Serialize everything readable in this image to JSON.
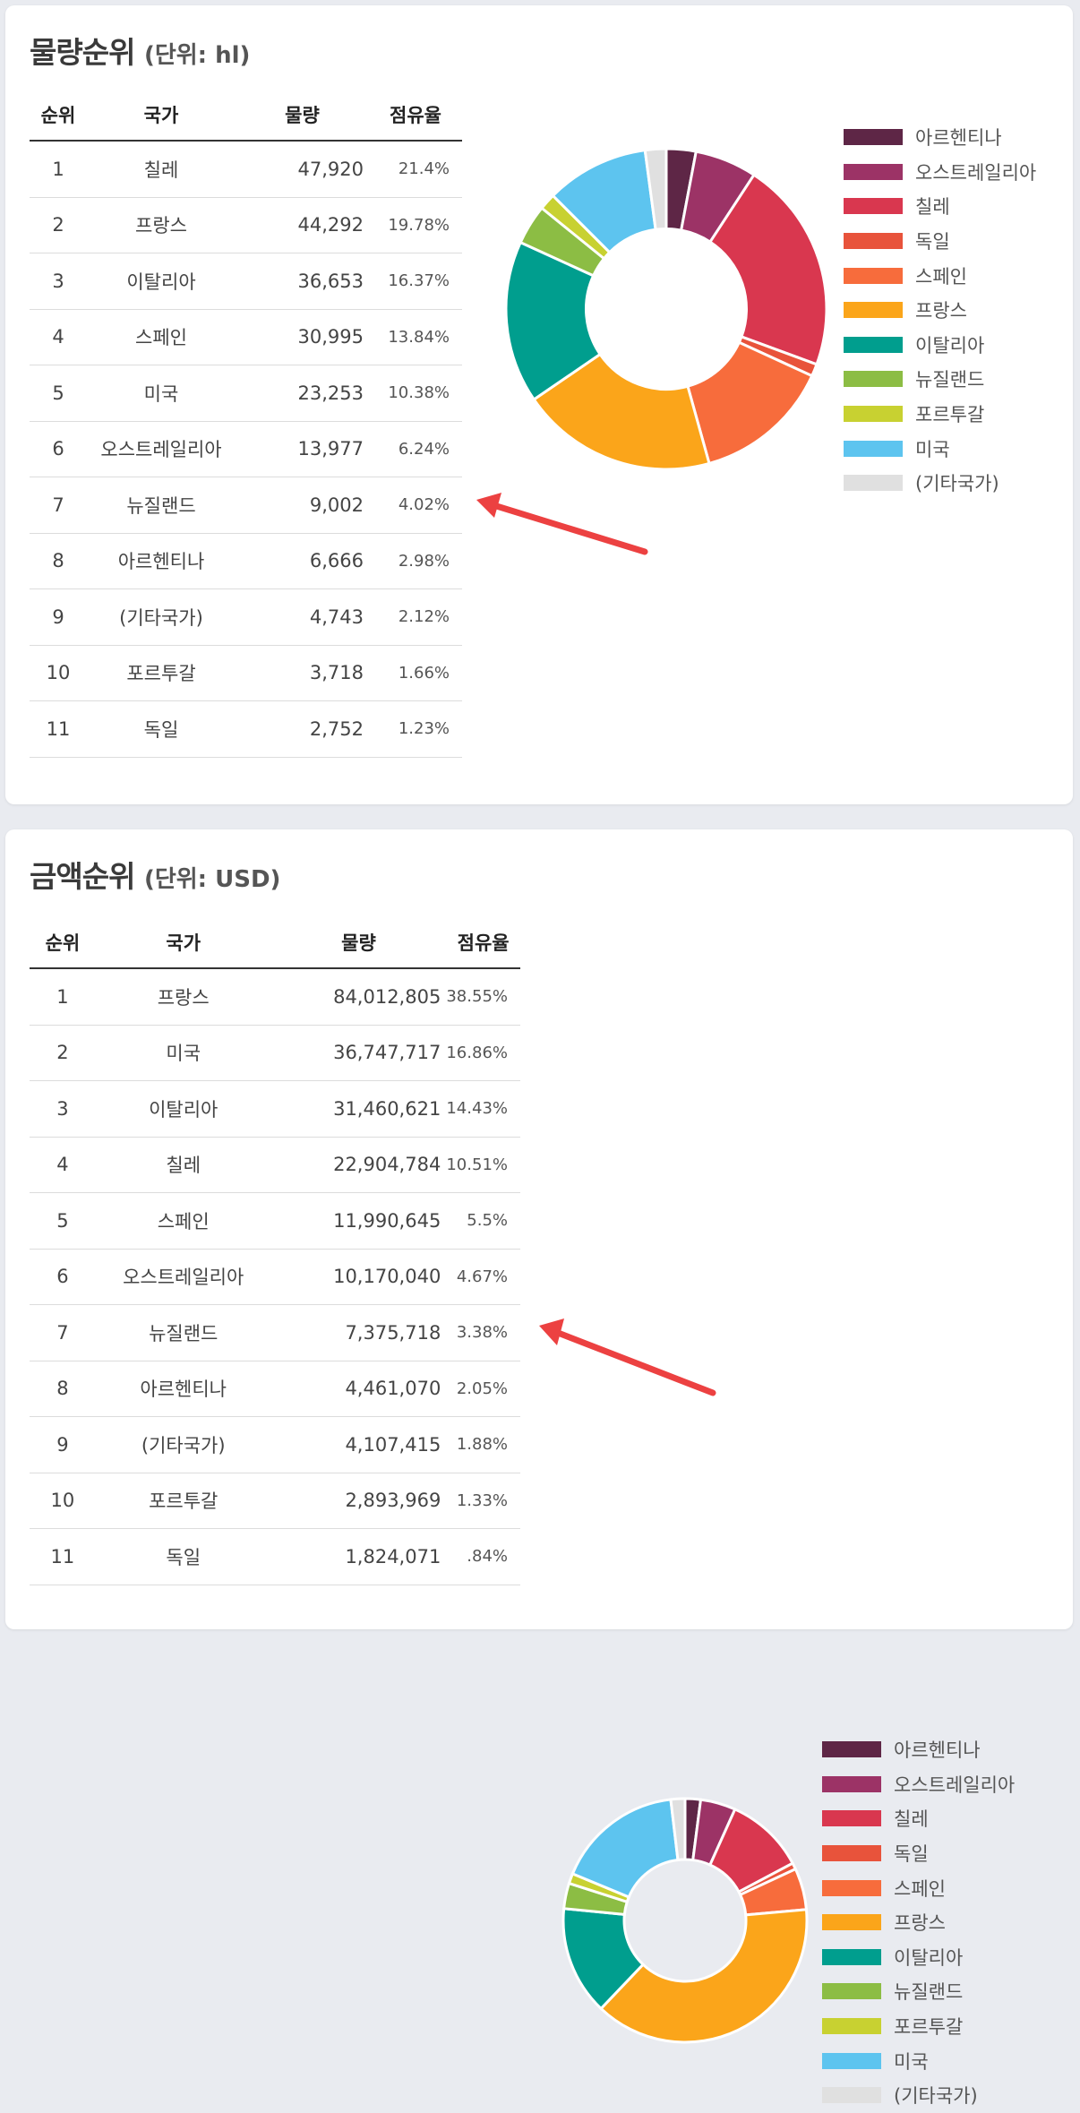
{
  "colors": {
    "arrow": "#ec4141",
    "countries": {
      "아르헨티나": "#5e2646",
      "오스트레일리아": "#9c3366",
      "칠레": "#d9374f",
      "독일": "#e8533b",
      "스페인": "#f76c3c",
      "프랑스": "#fba51a",
      "이탈리아": "#009e8e",
      "뉴질랜드": "#8cbd44",
      "포르투갈": "#c8d131",
      "미국": "#5dc4ef",
      "(기타국가)": "#e0e0e0"
    }
  },
  "legend_order": [
    "아르헨티나",
    "오스트레일리아",
    "칠레",
    "독일",
    "스페인",
    "프랑스",
    "이탈리아",
    "뉴질랜드",
    "포르투갈",
    "미국",
    "(기타국가)"
  ],
  "sections": [
    {
      "title": "물량순위",
      "unit": "(단위: hl)",
      "headers": [
        "순위",
        "국가",
        "물량",
        "점유율"
      ],
      "rows": [
        [
          "1",
          "칠레",
          "47,920",
          "21.4%"
        ],
        [
          "2",
          "프랑스",
          "44,292",
          "19.78%"
        ],
        [
          "3",
          "이탈리아",
          "36,653",
          "16.37%"
        ],
        [
          "4",
          "스페인",
          "30,995",
          "13.84%"
        ],
        [
          "5",
          "미국",
          "23,253",
          "10.38%"
        ],
        [
          "6",
          "오스트레일리아",
          "13,977",
          "6.24%"
        ],
        [
          "7",
          "뉴질랜드",
          "9,002",
          "4.02%"
        ],
        [
          "8",
          "아르헨티나",
          "6,666",
          "2.98%"
        ],
        [
          "9",
          "(기타국가)",
          "4,743",
          "2.12%"
        ],
        [
          "10",
          "포르투갈",
          "3,718",
          "1.66%"
        ],
        [
          "11",
          "독일",
          "2,752",
          "1.23%"
        ]
      ]
    },
    {
      "title": "금액순위",
      "unit": "(단위: USD)",
      "headers": [
        "순위",
        "국가",
        "물량",
        "점유율"
      ],
      "rows": [
        [
          "1",
          "프랑스",
          "84,012,805",
          "38.55%"
        ],
        [
          "2",
          "미국",
          "36,747,717",
          "16.86%"
        ],
        [
          "3",
          "이탈리아",
          "31,460,621",
          "14.43%"
        ],
        [
          "4",
          "칠레",
          "22,904,784",
          "10.51%"
        ],
        [
          "5",
          "스페인",
          "11,990,645",
          "5.5%"
        ],
        [
          "6",
          "오스트레일리아",
          "10,170,040",
          "4.67%"
        ],
        [
          "7",
          "뉴질랜드",
          "7,375,718",
          "3.38%"
        ],
        [
          "8",
          "아르헨티나",
          "4,461,070",
          "2.05%"
        ],
        [
          "9",
          "(기타국가)",
          "4,107,415",
          "1.88%"
        ],
        [
          "10",
          "포르투갈",
          "2,893,969",
          "1.33%"
        ],
        [
          "11",
          "독일",
          "1,824,071",
          ".84%"
        ]
      ]
    }
  ],
  "chart_data": [
    {
      "type": "pie",
      "variant": "donut",
      "title": "물량순위",
      "categories": [
        "아르헨티나",
        "오스트레일리아",
        "칠레",
        "독일",
        "스페인",
        "프랑스",
        "이탈리아",
        "뉴질랜드",
        "포르투갈",
        "미국",
        "(기타국가)"
      ],
      "values": [
        2.98,
        6.24,
        21.4,
        1.23,
        13.84,
        19.78,
        16.37,
        4.02,
        1.66,
        10.38,
        2.12
      ],
      "legend": "right"
    },
    {
      "type": "pie",
      "variant": "donut",
      "title": "금액순위",
      "categories": [
        "아르헨티나",
        "오스트레일리아",
        "칠레",
        "독일",
        "스페인",
        "프랑스",
        "이탈리아",
        "뉴질랜드",
        "포르투갈",
        "미국",
        "(기타국가)"
      ],
      "values": [
        2.05,
        4.67,
        10.51,
        0.84,
        5.5,
        38.55,
        14.43,
        3.38,
        1.33,
        16.86,
        1.88
      ],
      "legend": "right"
    }
  ]
}
